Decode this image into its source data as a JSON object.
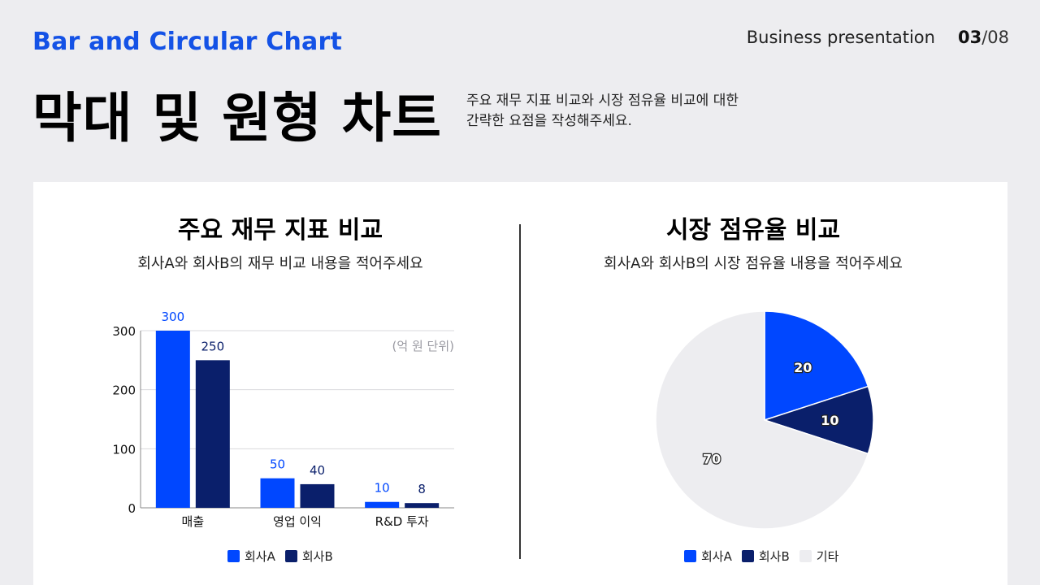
{
  "header": {
    "eyebrow": "Bar and Circular Chart",
    "doc_label": "Business presentation",
    "page_current": "03",
    "page_sep_total": "/08",
    "title": "막대 및 원형 차트",
    "description_line1": "주요 재무 지표 비교와 시장 점유율 비교에 대한",
    "description_line2": "간략한 요점을 작성해주세요."
  },
  "left_section": {
    "title": "주요 재무 지표 비교",
    "subtitle": "회사A와 회사B의 재무 비교 내용을 적어주세요"
  },
  "right_section": {
    "title": "시장 점유율 비교",
    "subtitle": "회사A와 회사B의 시장 점유율 내용을 적어주세요"
  },
  "colors": {
    "company_a": "#0047ff",
    "company_b": "#0a1f6b",
    "other": "#ededf0"
  },
  "chart_data": [
    {
      "type": "bar",
      "categories": [
        "매출",
        "영업 이익",
        "R&D 투자"
      ],
      "series": [
        {
          "name": "회사A",
          "values": [
            300,
            50,
            10
          ]
        },
        {
          "name": "회사B",
          "values": [
            250,
            40,
            8
          ]
        }
      ],
      "ylim": [
        0,
        300
      ],
      "yticks": [
        0,
        100,
        200,
        300
      ],
      "annotation": "(억 원 단위)",
      "grid": true,
      "legend": "bottom"
    },
    {
      "type": "pie",
      "slices": [
        {
          "name": "회사A",
          "value": 20
        },
        {
          "name": "회사B",
          "value": 10
        },
        {
          "name": "기타",
          "value": 70
        }
      ],
      "legend": "bottom"
    }
  ]
}
